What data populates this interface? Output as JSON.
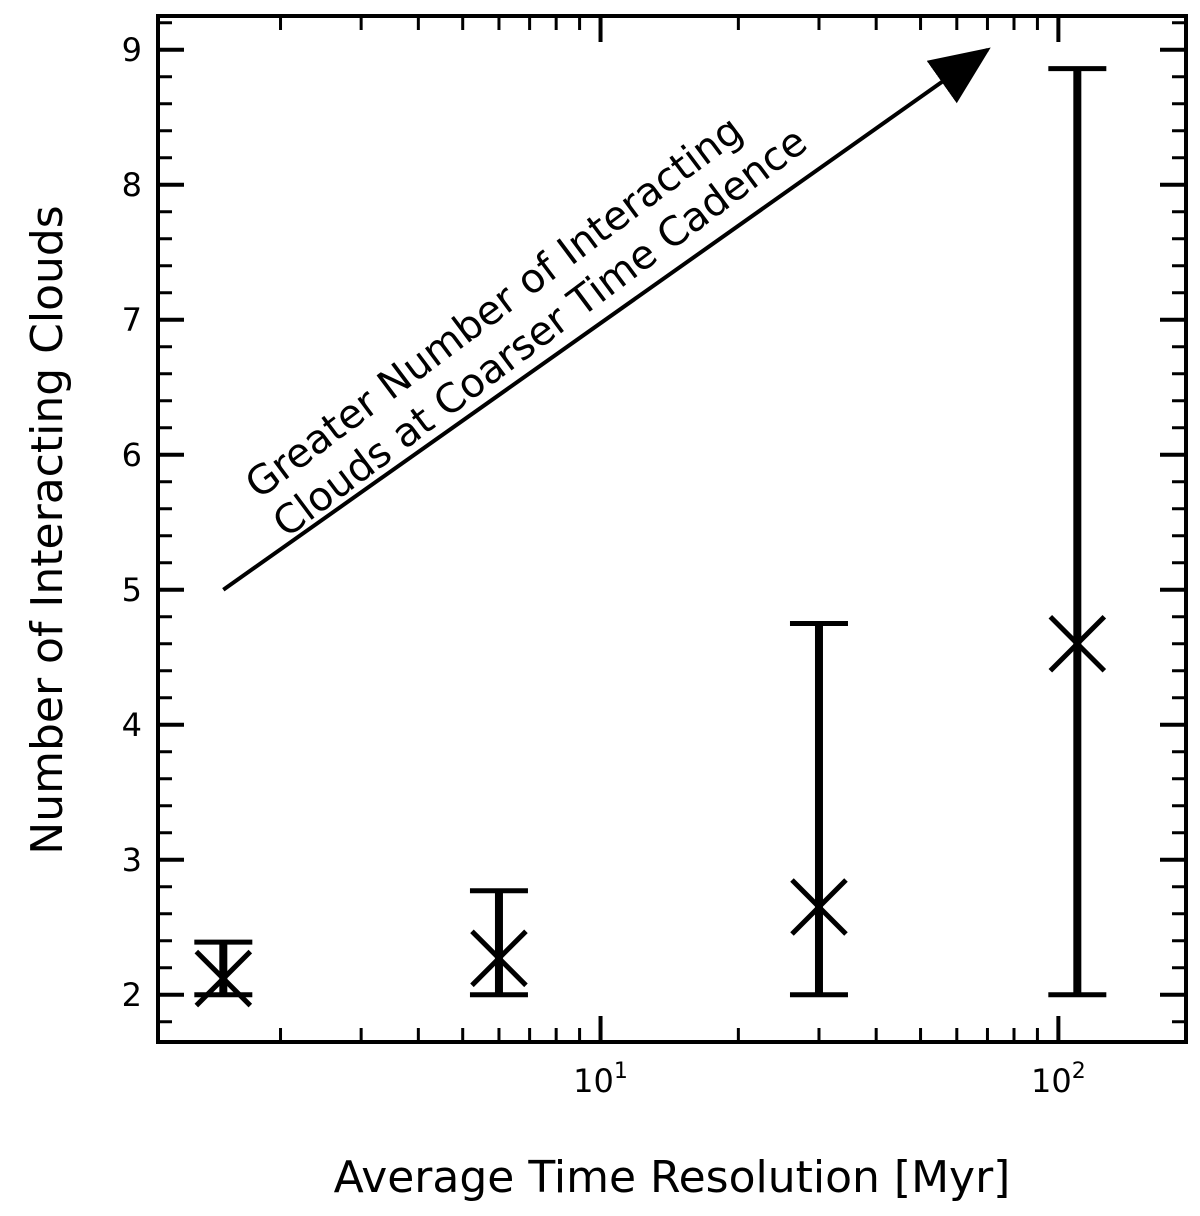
{
  "chart_data": {
    "type": "scatter",
    "title": "",
    "xlabel": "Average Time Resolution [Myr]",
    "ylabel": "Number of Interacting Clouds",
    "xscale": "log",
    "xlim": [
      1.08,
      190
    ],
    "ylim": [
      1.65,
      9.25
    ],
    "grid": false,
    "marker": "x",
    "yticks": [
      2,
      3,
      4,
      5,
      6,
      7,
      8,
      9
    ],
    "ytick_labels": [
      "2",
      "3",
      "4",
      "5",
      "6",
      "7",
      "8",
      "9"
    ],
    "xticks": [
      10,
      100
    ],
    "xtick_base": "10",
    "xtick_exponents": [
      "1",
      "2"
    ],
    "points": [
      {
        "x": 1.5,
        "y": 2.12,
        "err_low": 2.0,
        "err_high": 2.39
      },
      {
        "x": 6.0,
        "y": 2.27,
        "err_low": 2.0,
        "err_high": 2.77
      },
      {
        "x": 30,
        "y": 2.65,
        "err_low": 2.0,
        "err_high": 4.75
      },
      {
        "x": 110,
        "y": 4.6,
        "err_low": 2.0,
        "err_high": 8.86
      }
    ],
    "annotation": {
      "line1": "Greater Number of Interacting",
      "line2": "Clouds at Coarser Time Cadence",
      "arrow_from": [
        1.5,
        5.0
      ],
      "arrow_to": [
        70,
        9.0
      ]
    }
  }
}
